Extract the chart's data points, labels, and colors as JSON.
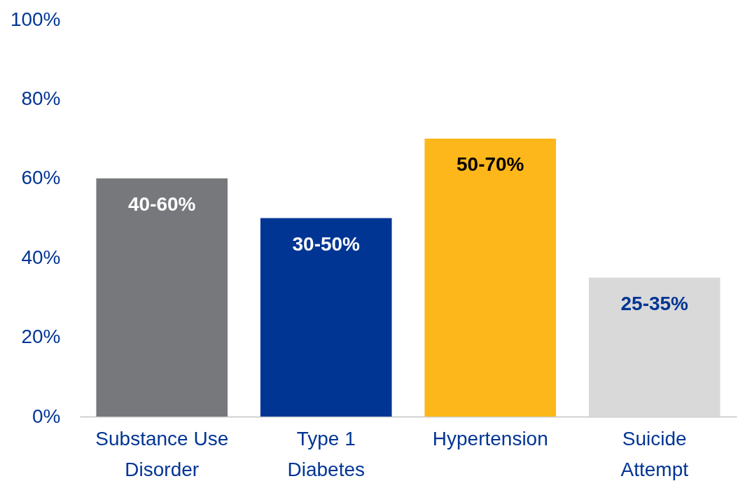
{
  "chart_data": {
    "type": "bar",
    "categories": [
      "Substance Use Disorder",
      "Type 1 Diabetes",
      "Hypertension",
      "Suicide Attempt"
    ],
    "values": [
      60,
      50,
      70,
      35
    ],
    "colors": [
      "#76787b",
      "#003594",
      "#fdb71a",
      "#d9d9d9"
    ],
    "annotations": [
      {
        "text": "40-60%",
        "x": "Substance Use Disorder",
        "y": 60
      },
      {
        "text": "30-50%",
        "x": "Type 1 Diabetes",
        "y": 50
      },
      {
        "text": "50-70%",
        "x": "Hypertension",
        "y": 70
      },
      {
        "text": "25-35%",
        "x": "Suicide Attempt",
        "y": 35
      }
    ],
    "ylim": [
      0,
      100
    ],
    "yticks": [
      {
        "value": 0,
        "label": "0%"
      },
      {
        "value": 20,
        "label": "20%"
      },
      {
        "value": 40,
        "label": "40%"
      },
      {
        "value": 60,
        "label": "60%"
      },
      {
        "value": 80,
        "label": "80%"
      },
      {
        "value": 100,
        "label": "100%"
      }
    ],
    "grid": false
  }
}
